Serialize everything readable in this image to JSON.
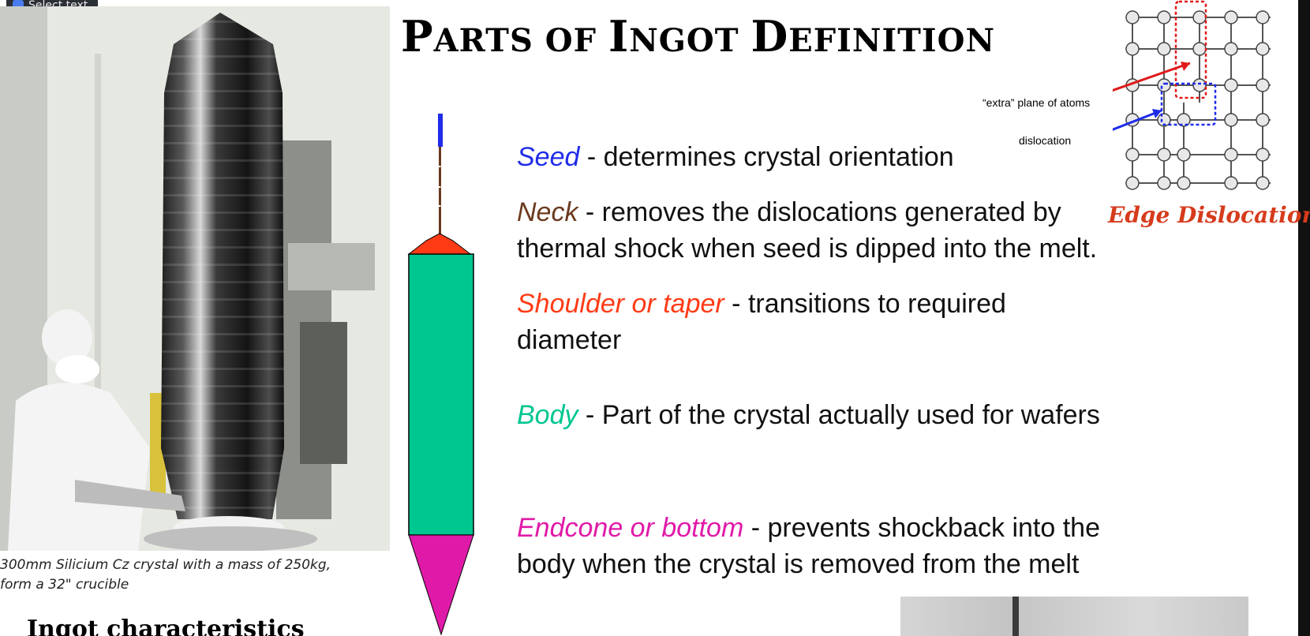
{
  "toolbar": {
    "select_text_label": "Select text"
  },
  "title": {
    "first": "P",
    "first_rest": "ARTS OF ",
    "second": "I",
    "second_rest": "NGOT ",
    "third": "D",
    "third_rest": "EFINITION"
  },
  "photo": {
    "caption_line1": "300mm Silicium Cz crystal with a mass of 250kg,",
    "caption_line2": "form a 32\" crucible"
  },
  "ingot_characteristics_heading": "Ingot characteristics",
  "definitions": {
    "seed": {
      "term": "Seed",
      "text": " - determines crystal orientation",
      "color": "#1f2ce8"
    },
    "neck": {
      "term": "Neck",
      "text": " - removes the dislocations generated by thermal shock when seed is dipped into the melt.",
      "color": "#6b3a1f"
    },
    "shoulder": {
      "term": "Shoulder or taper",
      "text": " -  transitions to required diameter",
      "color": "#ff3b16"
    },
    "body": {
      "term": "Body",
      "text": " - Part of the crystal actually used for wafers",
      "color": "#00c690"
    },
    "endcone": {
      "term": "Endcone or bottom",
      "text": " -  prevents shockback into the body when the crystal is removed from the melt",
      "color": "#e01aa8"
    }
  },
  "dislocation_figure": {
    "extra_plane_label": "“extra” plane of atoms",
    "dislocation_label": "dislocation",
    "title": "Edge Dislocation"
  },
  "ingot_diagram_colors": {
    "seed": "#1f2ce8",
    "neck": "#6b3a1f",
    "shoulder": "#ff3b16",
    "body": "#00c690",
    "endcone": "#e01aa8"
  }
}
